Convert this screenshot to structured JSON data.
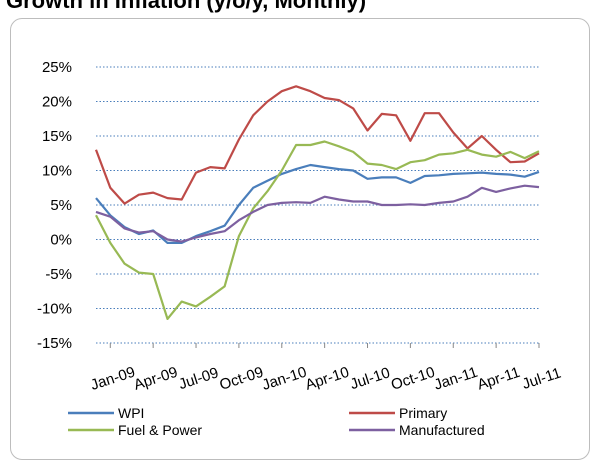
{
  "header": {
    "title": "Growth in Inflation (y/o/y, Monthly)"
  },
  "chart_data": {
    "type": "line",
    "ylim": [
      -15,
      25
    ],
    "yticks": [
      25,
      20,
      15,
      10,
      5,
      0,
      -5,
      -10,
      -15
    ],
    "ytick_labels": [
      "25%",
      "20%",
      "15%",
      "10%",
      "5%",
      "0%",
      "-5%",
      "-10%",
      "-15%"
    ],
    "grid": true,
    "legend": "bottom",
    "x_ticks": [
      {
        "i": 1,
        "label": "Jan-09"
      },
      {
        "i": 4,
        "label": "Apr-09"
      },
      {
        "i": 7,
        "label": "Jul-09"
      },
      {
        "i": 10,
        "label": "Oct-09"
      },
      {
        "i": 13,
        "label": "Jan-10"
      },
      {
        "i": 16,
        "label": "Apr-10"
      },
      {
        "i": 19,
        "label": "Jul-10"
      },
      {
        "i": 22,
        "label": "Oct-10"
      },
      {
        "i": 25,
        "label": "Jan-11"
      },
      {
        "i": 28,
        "label": "Apr-11"
      },
      {
        "i": 31,
        "label": "Jul-11"
      }
    ],
    "x": [
      "Dec-08",
      "Jan-09",
      "Feb-09",
      "Mar-09",
      "Apr-09",
      "May-09",
      "Jun-09",
      "Jul-09",
      "Aug-09",
      "Sep-09",
      "Oct-09",
      "Nov-09",
      "Dec-09",
      "Jan-10",
      "Feb-10",
      "Mar-10",
      "Apr-10",
      "May-10",
      "Jun-10",
      "Jul-10",
      "Aug-10",
      "Sep-10",
      "Oct-10",
      "Nov-10",
      "Dec-10",
      "Jan-11",
      "Feb-11",
      "Mar-11",
      "Apr-11",
      "May-11",
      "Jun-11",
      "Jul-11"
    ],
    "series": [
      {
        "name": "WPI",
        "color": "#4a7ebb",
        "values": [
          6,
          3.5,
          1.8,
          0.8,
          1.3,
          -0.5,
          -0.5,
          0.5,
          1.2,
          2,
          5,
          7.5,
          8.5,
          9.5,
          10.2,
          10.8,
          10.5,
          10.2,
          10,
          8.8,
          9,
          9,
          8.2,
          9.2,
          9.3,
          9.5,
          9.6,
          9.7,
          9.5,
          9.4,
          9.1,
          9.8
        ]
      },
      {
        "name": "Primary",
        "color": "#be4b48",
        "values": [
          13,
          7.5,
          5.2,
          6.5,
          6.8,
          6,
          5.8,
          9.7,
          10.5,
          10.3,
          14.5,
          18,
          20,
          21.5,
          22.2,
          21.5,
          20.5,
          20.2,
          19,
          15.8,
          18.2,
          18,
          14.3,
          18.3,
          18.3,
          15.5,
          13.2,
          15,
          13,
          11.2,
          11.3,
          12.5
        ]
      },
      {
        "name": "Fuel & Power",
        "color": "#98b954",
        "values": [
          3.5,
          -0.5,
          -3.5,
          -4.8,
          -5,
          -11.5,
          -9,
          -9.7,
          -8.3,
          -6.8,
          0.5,
          4.5,
          7,
          10,
          13.7,
          13.7,
          14.2,
          13.5,
          12.7,
          11,
          10.8,
          10.2,
          11.2,
          11.5,
          12.3,
          12.5,
          13,
          12.3,
          12,
          12.7,
          11.8,
          12.8
        ]
      },
      {
        "name": "Manufactured",
        "color": "#7d60a0",
        "values": [
          4,
          3.3,
          1.6,
          1,
          1.2,
          0,
          -0.3,
          0.3,
          0.8,
          1.2,
          2.8,
          4,
          5,
          5.3,
          5.4,
          5.3,
          6.2,
          5.8,
          5.5,
          5.5,
          5,
          5,
          5.1,
          5,
          5.3,
          5.5,
          6.2,
          7.5,
          6.9,
          7.4,
          7.8,
          7.6
        ]
      }
    ]
  }
}
